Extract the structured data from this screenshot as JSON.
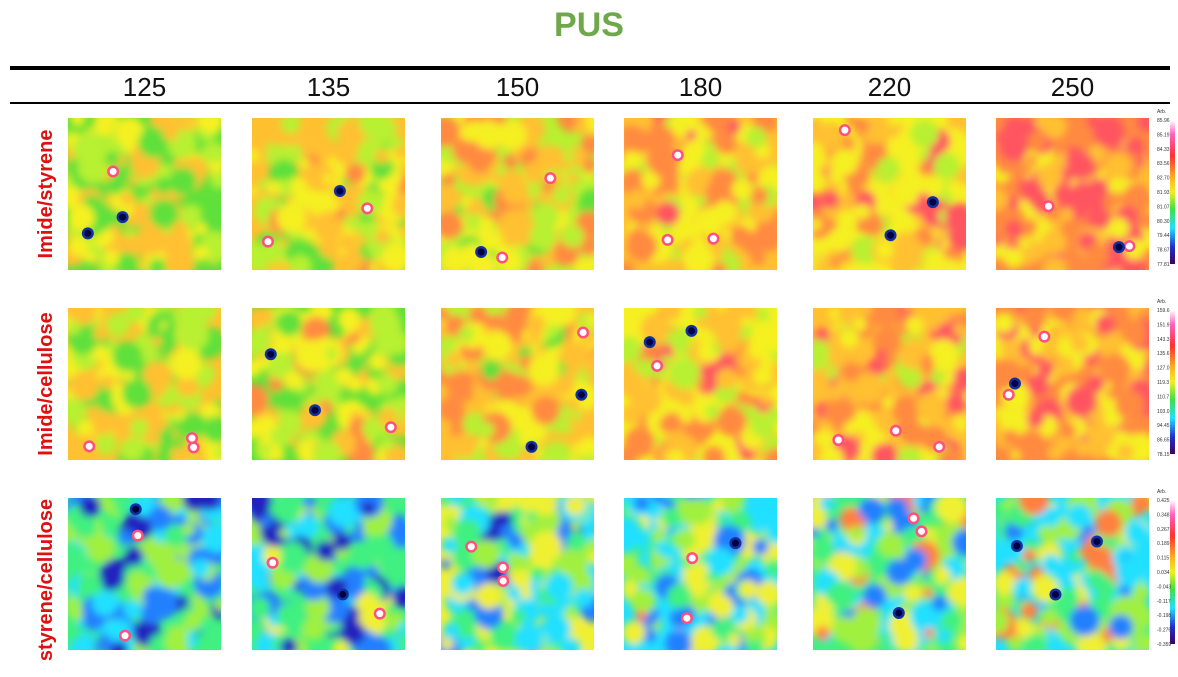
{
  "title": "PUS",
  "columns": [
    "125",
    "135",
    "150",
    "180",
    "220",
    "250"
  ],
  "rows": [
    {
      "label": "Imide/styrene",
      "scale": [
        "Arb.",
        "85.96",
        "85.19",
        "84.33",
        "83.56",
        "82.70",
        "81.93",
        "81.07",
        "80.30",
        "79.44",
        "78.67",
        "77.81"
      ]
    },
    {
      "label": "Imide/cellulose",
      "scale": [
        "Arb.",
        "159.6",
        "151.9",
        "143.3",
        "135.6",
        "127.0",
        "119.3",
        "110.7",
        "103.0",
        "94.45",
        "86.65",
        "78.15"
      ]
    },
    {
      "label": "styrene/cellulose",
      "scale": [
        "Arb.",
        "0.425",
        "0.348",
        "0.267",
        "0.189",
        "0.115",
        "0.034",
        "-0.043",
        "-0.117",
        "-0.198",
        "-0.276",
        "-0.359"
      ]
    }
  ]
}
